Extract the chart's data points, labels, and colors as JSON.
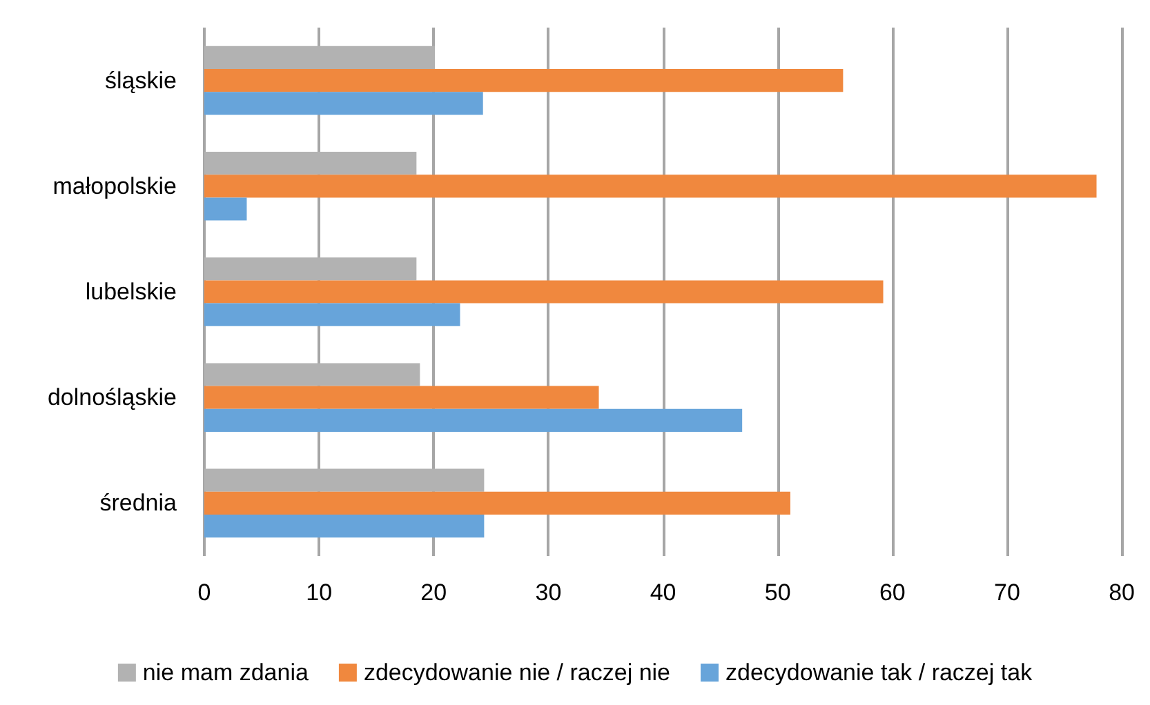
{
  "chart_data": {
    "type": "bar",
    "orientation": "horizontal",
    "categories": [
      "śląskie",
      "małopolskie",
      "lubelskie",
      "dolnośląskie",
      "średnia"
    ],
    "series": [
      {
        "name": "nie mam zdania",
        "color": "#b2b2b2",
        "values": [
          20.1,
          18.5,
          18.5,
          18.8,
          24.4
        ]
      },
      {
        "name": "zdecydowanie nie / raczej nie",
        "color": "#f0883e",
        "values": [
          55.7,
          77.8,
          59.2,
          34.4,
          51.1
        ]
      },
      {
        "name": "zdecydowanie tak / raczej tak",
        "color": "#67a4da",
        "values": [
          24.3,
          3.7,
          22.3,
          46.9,
          24.4
        ]
      }
    ],
    "xlim": [
      0,
      80
    ],
    "xticks": [
      0,
      10,
      20,
      30,
      40,
      50,
      60,
      70,
      80
    ],
    "grid": "x",
    "legend": "bottom"
  }
}
